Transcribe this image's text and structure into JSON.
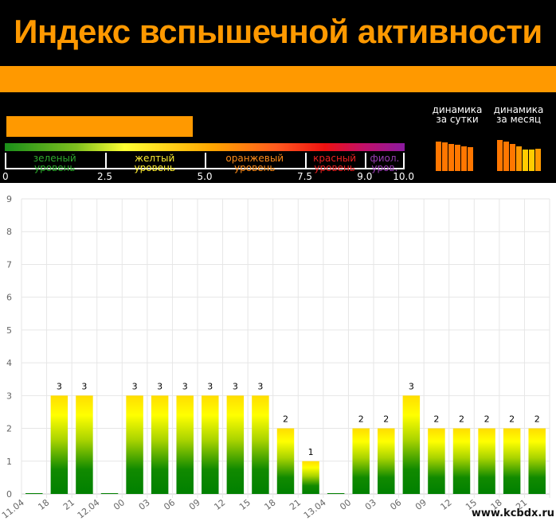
{
  "header": {
    "title": "Индекс вспышечной активности"
  },
  "scale": {
    "levels": [
      {
        "line1": "зеленый",
        "line2": "уровень",
        "color": "#2eaa2e"
      },
      {
        "line1": "желтый",
        "line2": "уровень",
        "color": "#ffee33"
      },
      {
        "line1": "оранжевый",
        "line2": "уровень",
        "color": "#ff8c1a"
      },
      {
        "line1": "красный",
        "line2": "уровень",
        "color": "#ee2222"
      },
      {
        "line1": "фиол.",
        "line2": "уров.",
        "color": "#9b3fb5"
      }
    ],
    "ticks": [
      "0",
      "2.5",
      "5.0",
      "7.5",
      "9.0",
      "10.0"
    ],
    "current_index": 4.7,
    "max": 10.0
  },
  "dynamics": {
    "day": {
      "line1": "динамика",
      "line2": "за сутки",
      "levels": [
        2.5,
        2.4,
        2.3,
        2.2,
        2.1,
        2.0
      ],
      "colors": [
        "#ff7700",
        "#ff7700",
        "#ff7700",
        "#ff7700",
        "#ff7700",
        "#ff7700"
      ]
    },
    "month": {
      "line1": "динамика",
      "line2": "за месяц",
      "levels": [
        2.6,
        2.5,
        2.3,
        2.1,
        1.8,
        1.8,
        1.9
      ],
      "colors": [
        "#ff7700",
        "#ff7700",
        "#ff7700",
        "#ff9900",
        "#ffcc00",
        "#ffcc00",
        "#ff9900"
      ]
    }
  },
  "chart_data": {
    "type": "bar",
    "categories": [
      "11.04",
      "18",
      "21",
      "12.04",
      "00",
      "03",
      "06",
      "09",
      "12",
      "15",
      "18",
      "21",
      "13.04",
      "00",
      "03",
      "06",
      "09",
      "12",
      "15",
      "18",
      "21"
    ],
    "values": [
      0,
      3,
      3,
      0,
      3,
      3,
      3,
      3,
      3,
      3,
      2,
      1,
      0,
      2,
      2,
      3,
      2,
      2,
      2,
      2,
      2
    ],
    "data_labels": [
      "",
      "3",
      "3",
      "",
      "3",
      "3",
      "3",
      "3",
      "3",
      "3",
      "2",
      "1",
      "",
      "2",
      "2",
      "3",
      "2",
      "2",
      "2",
      "2",
      "2"
    ],
    "ylim": [
      0,
      9
    ],
    "yticks": [
      "0",
      "1",
      "2",
      "3",
      "4",
      "5",
      "6",
      "7",
      "8",
      "9"
    ],
    "grid": true,
    "colors": {
      "bottom": "#008000",
      "top": "#ffff00"
    }
  },
  "watermark": "www.kcbdx.ru"
}
